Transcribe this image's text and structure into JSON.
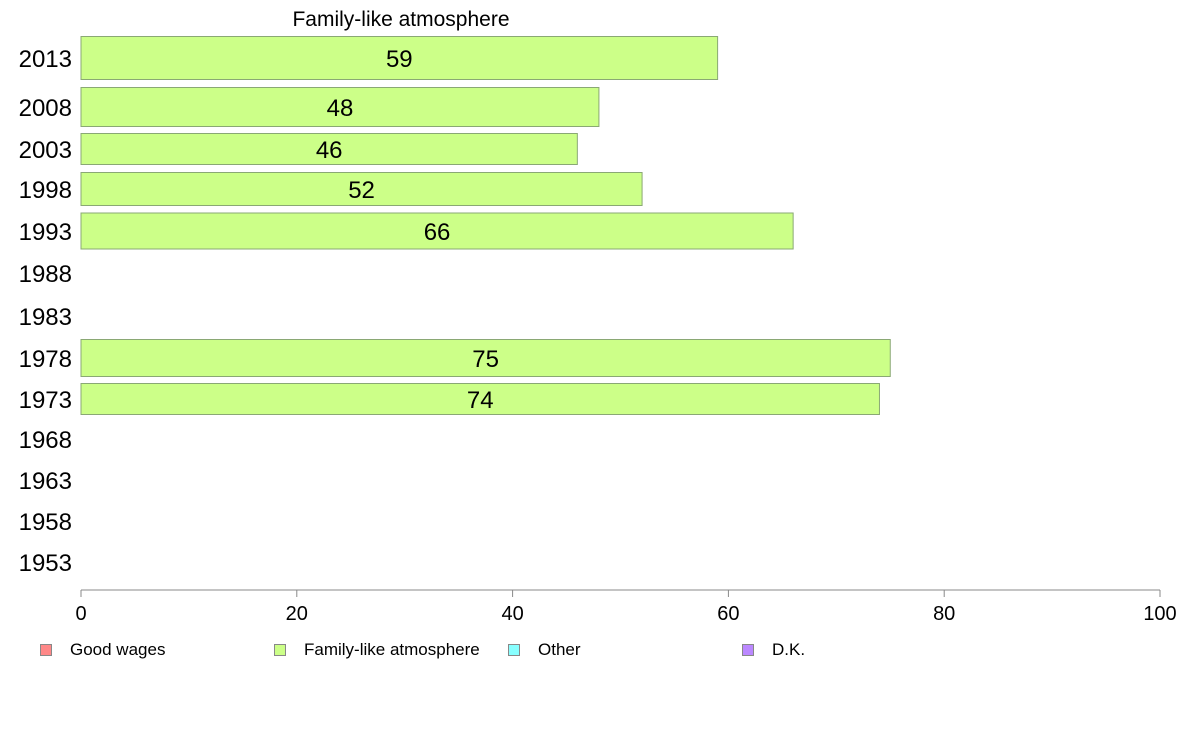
{
  "chart_data": {
    "type": "bar",
    "orientation": "horizontal",
    "title": "Family-like atmosphere",
    "categories": [
      "2013",
      "2008",
      "2003",
      "1998",
      "1993",
      "1988",
      "1983",
      "1978",
      "1973",
      "1968",
      "1963",
      "1958",
      "1953"
    ],
    "series": [
      {
        "name": "Family-like atmosphere",
        "color": "#ccff88",
        "values": [
          59,
          48,
          46,
          52,
          66,
          null,
          null,
          75,
          74,
          null,
          null,
          null,
          null
        ]
      }
    ],
    "xlim": [
      0,
      100
    ],
    "xticks": [
      "0",
      "20",
      "40",
      "60",
      "80",
      "100"
    ],
    "grid": false,
    "legend_position": "bottom",
    "legend": [
      {
        "label": "Good wages",
        "color": "#ff8888"
      },
      {
        "label": "Family-like atmosphere",
        "color": "#ccff88"
      },
      {
        "label": "Other",
        "color": "#88ffff"
      },
      {
        "label": "D.K.",
        "color": "#bb88ff"
      }
    ]
  }
}
